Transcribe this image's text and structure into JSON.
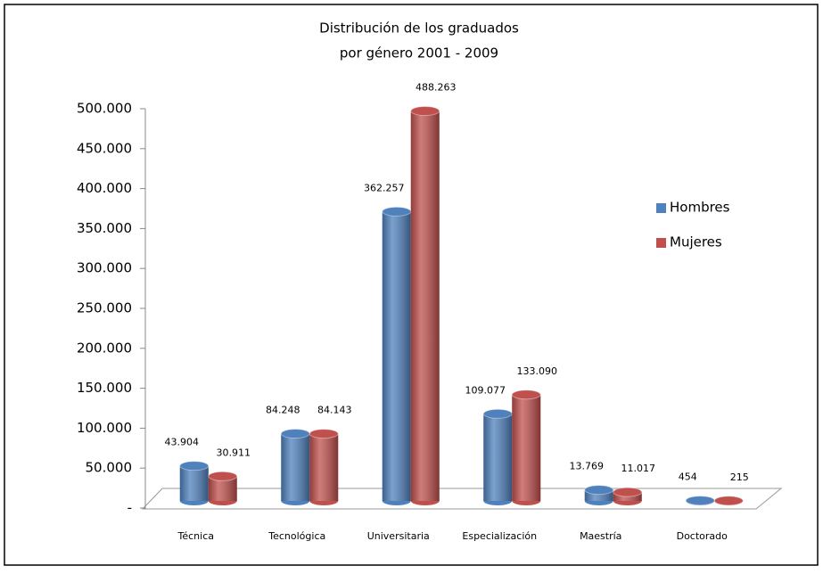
{
  "chart_data": {
    "type": "bar3d",
    "title": [
      "Distribución de los graduados",
      "por género 2001 - 2009"
    ],
    "categories": [
      "Técnica",
      "Tecnológica",
      "Universitaria",
      "Especialización",
      "Maestría",
      "Doctorado"
    ],
    "series": [
      {
        "name": "Hombres",
        "color": "#4f81bd",
        "values": [
          43904,
          84248,
          362257,
          109077,
          13769,
          454
        ],
        "value_labels": [
          "43.904",
          "84.248",
          "362.257",
          "109.077",
          "13.769",
          "454"
        ]
      },
      {
        "name": "Mujeres",
        "color": "#c0504d",
        "values": [
          30911,
          84143,
          488263,
          133090,
          11017,
          215
        ],
        "value_labels": [
          "30.911",
          "84.143",
          "488.263",
          "133.090",
          "11.017",
          "215"
        ]
      }
    ],
    "ylim": [
      0,
      500000
    ],
    "yticks": [
      {
        "value": 0,
        "label": "-"
      },
      {
        "value": 50000,
        "label": "50.000"
      },
      {
        "value": 100000,
        "label": "100.000"
      },
      {
        "value": 150000,
        "label": "150.000"
      },
      {
        "value": 200000,
        "label": "200.000"
      },
      {
        "value": 250000,
        "label": "250.000"
      },
      {
        "value": 300000,
        "label": "300.000"
      },
      {
        "value": 350000,
        "label": "350.000"
      },
      {
        "value": 400000,
        "label": "400.000"
      },
      {
        "value": 450000,
        "label": "450.000"
      },
      {
        "value": 500000,
        "label": "500.000"
      }
    ],
    "legend": "right"
  }
}
